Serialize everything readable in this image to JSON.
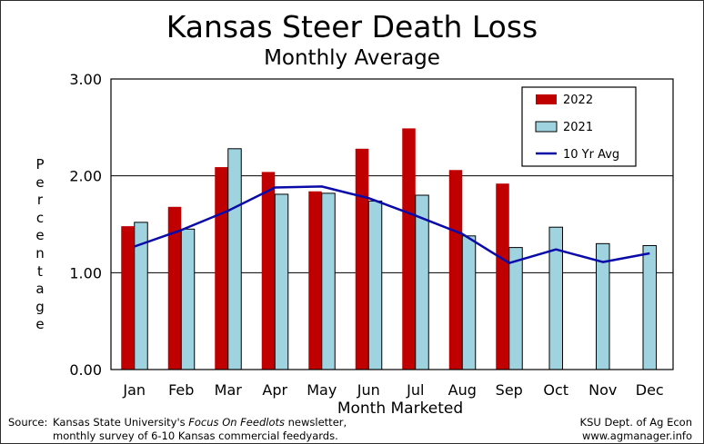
{
  "chart_data": {
    "type": "bar",
    "title": "Kansas Steer Death Loss",
    "subtitle": "Monthly Average",
    "xlabel": "Month Marketed",
    "ylabel": "Percentage",
    "categories": [
      "Jan",
      "Feb",
      "Mar",
      "Apr",
      "May",
      "Jun",
      "Jul",
      "Aug",
      "Sep",
      "Oct",
      "Nov",
      "Dec"
    ],
    "ylim": [
      0,
      3
    ],
    "yticks": [
      "0.00",
      "1.00",
      "2.00",
      "3.00"
    ],
    "grid": true,
    "legend_position": "top-right",
    "series": [
      {
        "name": "2022",
        "kind": "bar",
        "color": "#c00000",
        "values": [
          1.48,
          1.68,
          2.09,
          2.04,
          1.84,
          2.28,
          2.49,
          2.06,
          1.92,
          null,
          null,
          null
        ]
      },
      {
        "name": "2021",
        "kind": "bar",
        "color": "#9fd3e0",
        "values": [
          1.52,
          1.45,
          2.28,
          1.81,
          1.82,
          1.74,
          1.8,
          1.38,
          1.26,
          1.47,
          1.3,
          1.28
        ]
      },
      {
        "name": "10 Yr Avg",
        "kind": "line",
        "color": "#0a0aa8",
        "values": [
          1.27,
          1.44,
          1.64,
          1.88,
          1.89,
          1.77,
          1.59,
          1.4,
          1.1,
          1.24,
          1.11,
          1.2
        ]
      }
    ]
  },
  "footer": {
    "source_label": "Source:",
    "source_line1_pre": "Kansas State University's ",
    "source_line1_em": "Focus On Feedlots",
    "source_line1_post": " newsletter,",
    "source_line2": "monthly survey of 6-10 Kansas commercial feedyards.",
    "credit_line1": "KSU Dept. of Ag Econ",
    "credit_line2": "www.agmanager.info"
  }
}
